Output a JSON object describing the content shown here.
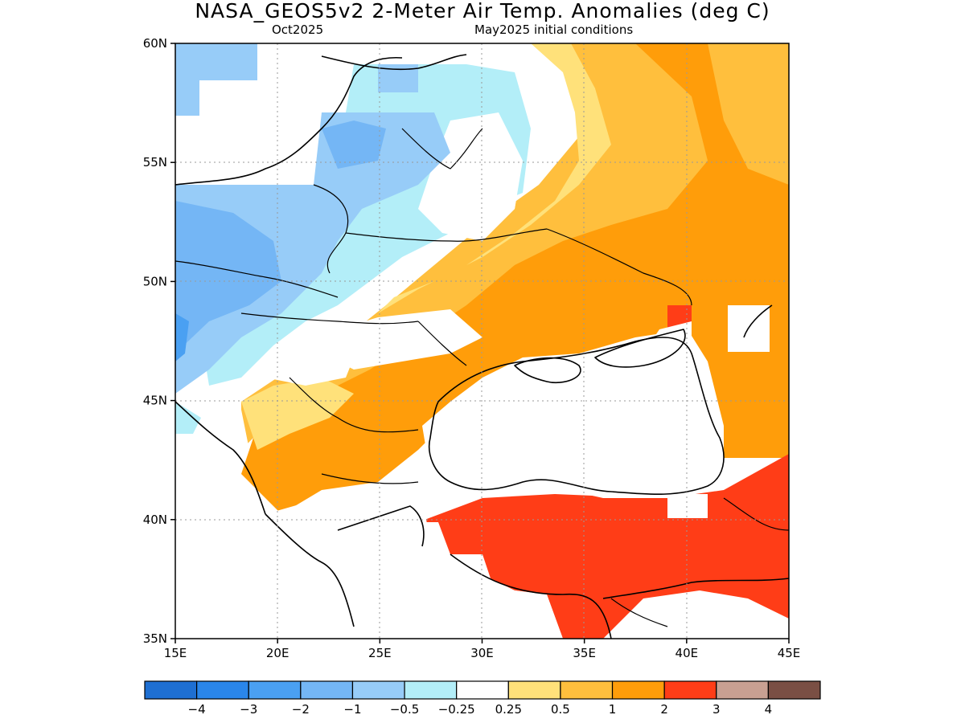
{
  "header": {
    "title": "NASA_GEOS5v2 2-Meter Air Temp. Anomalies (deg C)",
    "valid_month": "Oct2025",
    "init_conditions": "May2025 initial conditions"
  },
  "map": {
    "lon_range": [
      15,
      45
    ],
    "lat_range": [
      35,
      60
    ],
    "lat_ticks": [
      "35N",
      "40N",
      "45N",
      "50N",
      "55N",
      "60N"
    ],
    "lon_ticks": [
      "15E",
      "20E",
      "25E",
      "30E",
      "35E",
      "40E",
      "45E"
    ],
    "grid": true
  },
  "colorbar": {
    "colors": [
      "#1e6fd2",
      "#2a86ea",
      "#4aa0f2",
      "#74b6f5",
      "#97ccf8",
      "#b3eef8",
      "#ffffff",
      "#ffe17a",
      "#ffbf3d",
      "#ff9d0a",
      "#ff3d17",
      "#c8a092",
      "#7a4f44"
    ],
    "labels": [
      "−4",
      "−3",
      "−2",
      "−1",
      "−0.5",
      "−0.25",
      "0.25",
      "0.5",
      "1",
      "2",
      "3",
      "4"
    ]
  }
}
